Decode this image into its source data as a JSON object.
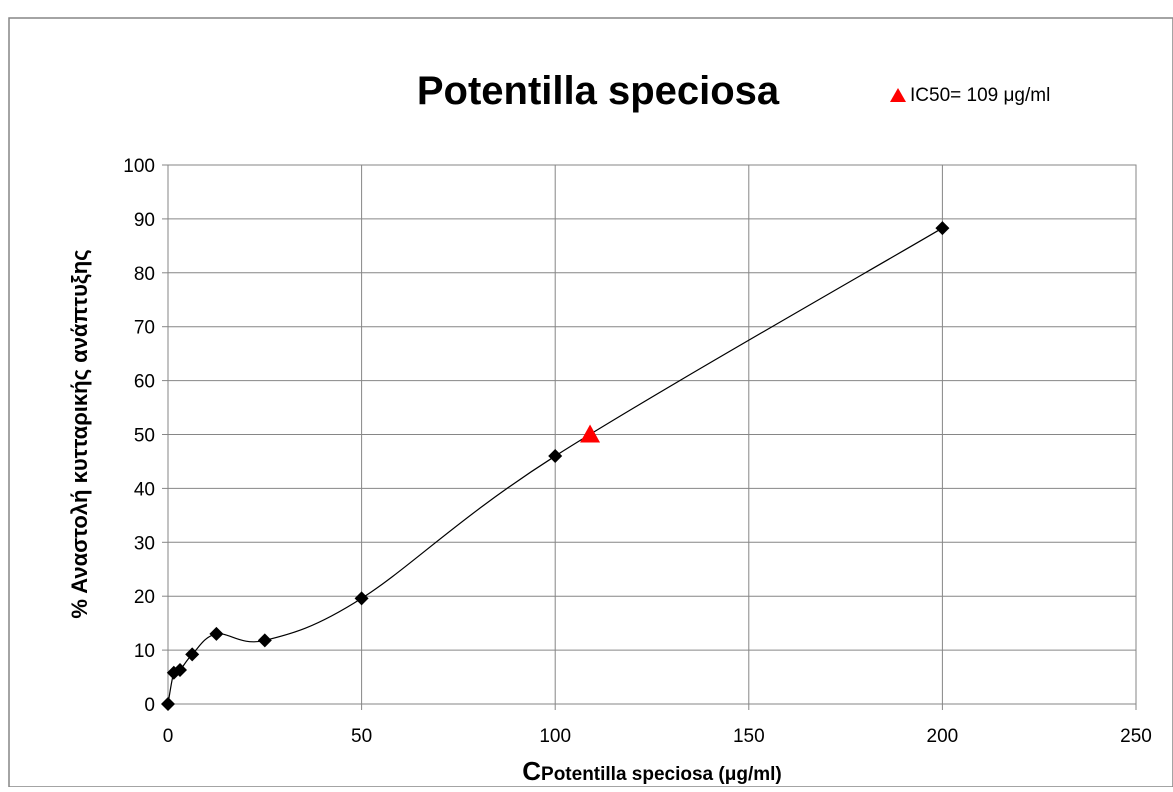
{
  "chart_data": {
    "type": "scatter",
    "title": "Potentilla speciosa",
    "xlabel_main": "C",
    "xlabel_sub": "Potentilla speciosa (μg/ml)",
    "ylabel": "% Αναστολή κυτταρικής ανάπτυξης",
    "xlim": [
      0,
      250
    ],
    "ylim": [
      0,
      100
    ],
    "x_ticks": [
      0,
      50,
      100,
      150,
      200,
      250
    ],
    "y_ticks": [
      0,
      10,
      20,
      30,
      40,
      50,
      60,
      70,
      80,
      90,
      100
    ],
    "grid": true,
    "legend_position": "top-right",
    "series": [
      {
        "marker": "diamond",
        "color": "#000000",
        "line": "smooth",
        "x": [
          0,
          1.5,
          3.1,
          6.25,
          12.5,
          25,
          50,
          100,
          200
        ],
        "y": [
          0,
          5.8,
          6.3,
          9.2,
          13.0,
          11.8,
          19.6,
          46.0,
          88.3
        ]
      },
      {
        "name": "IC50= 109 μg/ml",
        "marker": "triangle",
        "color": "#ff0000",
        "x": [
          109
        ],
        "y": [
          50
        ]
      }
    ]
  }
}
